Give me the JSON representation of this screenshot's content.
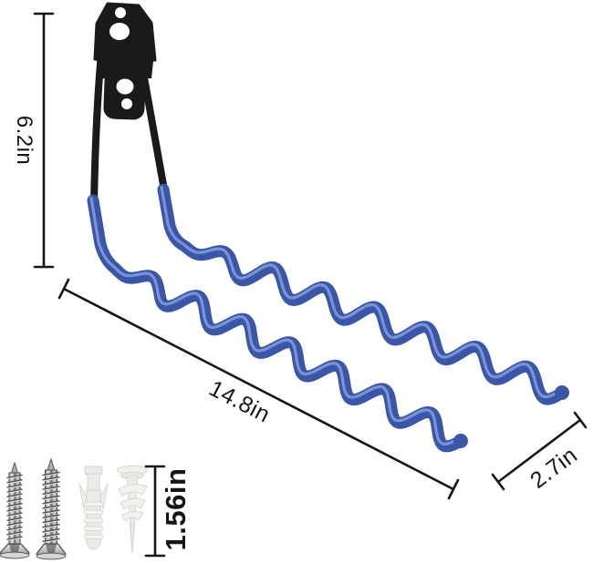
{
  "dimensions": {
    "bracket_height": "6.2in",
    "hook_length": "14.8in",
    "hook_width": "2.7in",
    "anchor_length": "1.56in"
  },
  "colors": {
    "prong_blue": "#3a56a6",
    "prong_highlight": "#7e96d8",
    "prong_shadow": "#26407f",
    "metal_black": "#1a1a1a",
    "dimension_line": "#151515",
    "hole_white": "#ffffff",
    "anchor_white": "#ecebe7",
    "background": "#ffffff"
  }
}
